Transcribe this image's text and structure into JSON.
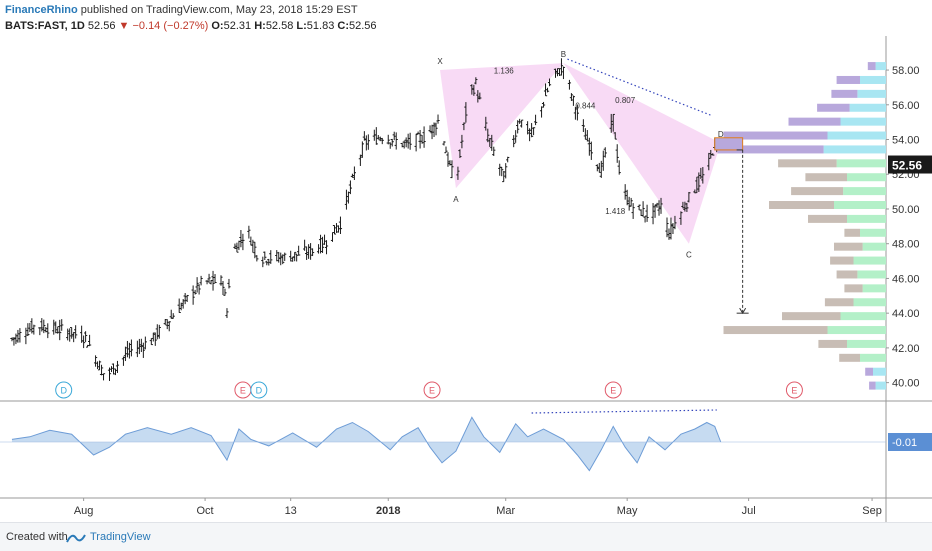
{
  "header": {
    "author": "FinanceRhino",
    "published": "published on TradingView.com, May 23, 2018 15:29 EST",
    "symbol": "BATS:FAST, 1D",
    "last": "52.56",
    "change": "−0.14 (−0.27%)",
    "o_label": "O:",
    "o": "52.31",
    "h_label": "H:",
    "h": "52.58",
    "l_label": "L:",
    "l": "51.83",
    "c_label": "C:",
    "c": "52.56"
  },
  "footer": {
    "created": "Created with",
    "brand": "TradingView"
  },
  "colors": {
    "bar": "#1a1a1a",
    "pattern_fill": "#f7d4f3",
    "dotted": "#3344bb",
    "volume_up": "#b3f0c8",
    "volume_down": "#c8bdb5",
    "volume_up_hl": "#a8e6f2",
    "volume_down_hl": "#b8a8dc",
    "osc_fill": "#b8d2ee",
    "osc_line": "#6d9cd6",
    "price_label_bg": "#1a1a1a",
    "osc_label_bg": "#5b8fd4",
    "box_fill": "#b8a8dc",
    "box_stroke": "#e07c1a",
    "dividend": "#3aa8d8",
    "earnings": "#e05a6a"
  },
  "chart_data": {
    "type": "bar",
    "x_ticks": [
      "Aug",
      "Oct",
      "13",
      "2018",
      "Mar",
      "May",
      "Jul",
      "Sep"
    ],
    "y_ticks": [
      "40.00",
      "42.00",
      "44.00",
      "46.00",
      "48.00",
      "50.00",
      "52.00",
      "54.00",
      "56.00",
      "58.00"
    ],
    "ylim": [
      39,
      59.5
    ],
    "last_price": "52.56",
    "oscillator_label": "-0.01",
    "price_anchors": [
      [
        "2017-06-26",
        42.5
      ],
      [
        "2017-07-08",
        43.3
      ],
      [
        "2017-07-22",
        43.0
      ],
      [
        "2017-08-02",
        42.6
      ],
      [
        "2017-08-12",
        40.3
      ],
      [
        "2017-08-24",
        41.8
      ],
      [
        "2017-09-04",
        42.4
      ],
      [
        "2017-09-18",
        44.3
      ],
      [
        "2017-09-30",
        45.8
      ],
      [
        "2017-10-10",
        45.8
      ],
      [
        "2017-10-12",
        44.1
      ],
      [
        "2017-10-14",
        47.3
      ],
      [
        "2017-10-22",
        48.8
      ],
      [
        "2017-10-28",
        47.2
      ],
      [
        "2017-11-10",
        47.2
      ],
      [
        "2017-11-24",
        47.6
      ],
      [
        "2017-12-02",
        48.2
      ],
      [
        "2017-12-08",
        49.2
      ],
      [
        "2017-12-14",
        51.6
      ],
      [
        "2017-12-20",
        53.8
      ],
      [
        "2017-12-29",
        54.2
      ],
      [
        "2018-01-10",
        53.7
      ],
      [
        "2018-01-20",
        54.2
      ],
      [
        "2018-01-27",
        55.2
      ],
      [
        "2018-01-31",
        52.8
      ],
      [
        "2018-02-04",
        51.4
      ],
      [
        "2018-02-10",
        56.4
      ],
      [
        "2018-02-14",
        57.2
      ],
      [
        "2018-02-20",
        54.2
      ],
      [
        "2018-02-28",
        51.8
      ],
      [
        "2018-03-08",
        55.2
      ],
      [
        "2018-03-14",
        54.2
      ],
      [
        "2018-03-24",
        57.5
      ],
      [
        "2018-03-30",
        58.2
      ],
      [
        "2018-04-04",
        56.2
      ],
      [
        "2018-04-10",
        54.2
      ],
      [
        "2018-04-18",
        52.2
      ],
      [
        "2018-04-24",
        55.2
      ],
      [
        "2018-04-28",
        51.2
      ],
      [
        "2018-05-03",
        50.2
      ],
      [
        "2018-05-12",
        49.6
      ],
      [
        "2018-05-18",
        50.2
      ],
      [
        "2018-05-22",
        48.6
      ],
      [
        "2018-05-28",
        49.8
      ],
      [
        "2018-06-04",
        51.2
      ],
      [
        "2018-06-10",
        52.2
      ],
      [
        "2018-06-14",
        53.8
      ],
      [
        "2018-06-17",
        52.56
      ]
    ],
    "events": [
      {
        "date": "2017-07-22",
        "label": "D"
      },
      {
        "date": "2017-10-20",
        "label": "E"
      },
      {
        "date": "2017-10-28",
        "label": "D"
      },
      {
        "date": "2018-01-23",
        "label": "E"
      },
      {
        "date": "2018-04-24",
        "label": "E"
      },
      {
        "date": "2018-07-24",
        "label": "E"
      }
    ],
    "pattern": {
      "points": [
        {
          "label": "X",
          "date": "2018-01-27",
          "price": 58.0
        },
        {
          "label": "A",
          "date": "2018-02-04",
          "price": 51.2
        },
        {
          "label": "B",
          "date": "2018-03-30",
          "price": 58.4
        },
        {
          "label": "C",
          "date": "2018-06-01",
          "price": 48.0
        },
        {
          "label": "D",
          "date": "2018-06-17",
          "price": 53.8
        }
      ],
      "ratios": [
        {
          "label": "1.136",
          "date": "2018-02-28",
          "price": 57.8
        },
        {
          "label": "0.844",
          "date": "2018-04-10",
          "price": 55.8
        },
        {
          "label": "0.807",
          "date": "2018-04-30",
          "price": 56.1
        },
        {
          "label": "1.418",
          "date": "2018-04-25",
          "price": 49.7
        }
      ],
      "target": {
        "from_date": "2018-06-14",
        "from_price": 53.4,
        "to_price": 44.0
      },
      "box": {
        "date_from": "2018-06-14",
        "date_to": "2018-06-28",
        "price_high": 54.1,
        "price_low": 53.4
      }
    },
    "volume_profile": [
      {
        "price": 58.2,
        "up": 0.08,
        "down": 0.06,
        "hl": true
      },
      {
        "price": 57.4,
        "up": 0.2,
        "down": 0.18,
        "hl": true
      },
      {
        "price": 56.6,
        "up": 0.22,
        "down": 0.2,
        "hl": true
      },
      {
        "price": 55.8,
        "up": 0.28,
        "down": 0.25,
        "hl": true
      },
      {
        "price": 55.0,
        "up": 0.35,
        "down": 0.4,
        "hl": true
      },
      {
        "price": 54.2,
        "up": 0.45,
        "down": 0.8,
        "hl": true
      },
      {
        "price": 53.4,
        "up": 0.48,
        "down": 0.82,
        "hl": true
      },
      {
        "price": 52.6,
        "up": 0.38,
        "down": 0.45,
        "hl": false
      },
      {
        "price": 51.8,
        "up": 0.3,
        "down": 0.32,
        "hl": false
      },
      {
        "price": 51.0,
        "up": 0.33,
        "down": 0.4,
        "hl": false
      },
      {
        "price": 50.2,
        "up": 0.4,
        "down": 0.5,
        "hl": false
      },
      {
        "price": 49.4,
        "up": 0.3,
        "down": 0.3,
        "hl": false
      },
      {
        "price": 48.6,
        "up": 0.2,
        "down": 0.12,
        "hl": false
      },
      {
        "price": 47.8,
        "up": 0.18,
        "down": 0.22,
        "hl": false
      },
      {
        "price": 47.0,
        "up": 0.25,
        "down": 0.18,
        "hl": false
      },
      {
        "price": 46.2,
        "up": 0.22,
        "down": 0.16,
        "hl": false
      },
      {
        "price": 45.4,
        "up": 0.18,
        "down": 0.14,
        "hl": false
      },
      {
        "price": 44.6,
        "up": 0.25,
        "down": 0.22,
        "hl": false
      },
      {
        "price": 43.8,
        "up": 0.35,
        "down": 0.45,
        "hl": false
      },
      {
        "price": 43.0,
        "up": 0.45,
        "down": 0.8,
        "hl": false
      },
      {
        "price": 42.2,
        "up": 0.3,
        "down": 0.22,
        "hl": false
      },
      {
        "price": 41.4,
        "up": 0.2,
        "down": 0.16,
        "hl": false
      },
      {
        "price": 40.6,
        "up": 0.1,
        "down": 0.06,
        "hl": true
      },
      {
        "price": 39.8,
        "up": 0.08,
        "down": 0.05,
        "hl": true
      }
    ],
    "oscillator_anchors": [
      [
        "2017-06-26",
        0.1
      ],
      [
        "2017-07-05",
        0.2
      ],
      [
        "2017-07-15",
        0.45
      ],
      [
        "2017-07-26",
        0.3
      ],
      [
        "2017-08-06",
        -0.5
      ],
      [
        "2017-08-14",
        -0.2
      ],
      [
        "2017-08-22",
        0.3
      ],
      [
        "2017-09-02",
        0.55
      ],
      [
        "2017-09-14",
        0.3
      ],
      [
        "2017-09-24",
        0.55
      ],
      [
        "2017-10-04",
        0.25
      ],
      [
        "2017-10-12",
        -0.7
      ],
      [
        "2017-10-18",
        0.5
      ],
      [
        "2017-10-24",
        0.1
      ],
      [
        "2017-11-02",
        -0.15
      ],
      [
        "2017-11-14",
        0.35
      ],
      [
        "2017-11-26",
        -0.2
      ],
      [
        "2017-12-06",
        0.5
      ],
      [
        "2017-12-14",
        0.75
      ],
      [
        "2017-12-22",
        0.4
      ],
      [
        "2018-01-02",
        -0.3
      ],
      [
        "2018-01-08",
        0.2
      ],
      [
        "2018-01-16",
        0.55
      ],
      [
        "2018-01-22",
        -0.2
      ],
      [
        "2018-01-28",
        -0.8
      ],
      [
        "2018-02-04",
        -0.35
      ],
      [
        "2018-02-12",
        0.95
      ],
      [
        "2018-02-18",
        0.2
      ],
      [
        "2018-02-26",
        -0.4
      ],
      [
        "2018-03-06",
        0.7
      ],
      [
        "2018-03-12",
        0.2
      ],
      [
        "2018-03-20",
        0.5
      ],
      [
        "2018-03-30",
        0.1
      ],
      [
        "2018-04-06",
        -0.5
      ],
      [
        "2018-04-12",
        -1.1
      ],
      [
        "2018-04-18",
        -0.3
      ],
      [
        "2018-04-24",
        0.6
      ],
      [
        "2018-04-30",
        -0.2
      ],
      [
        "2018-05-06",
        -0.8
      ],
      [
        "2018-05-12",
        0.2
      ],
      [
        "2018-05-20",
        -0.3
      ],
      [
        "2018-05-28",
        0.3
      ],
      [
        "2018-06-04",
        0.5
      ],
      [
        "2018-06-10",
        0.75
      ],
      [
        "2018-06-14",
        0.6
      ],
      [
        "2018-06-17",
        0.0
      ]
    ],
    "oscillator_divergence": {
      "from_date": "2018-03-14",
      "to_date": "2018-06-15"
    }
  }
}
